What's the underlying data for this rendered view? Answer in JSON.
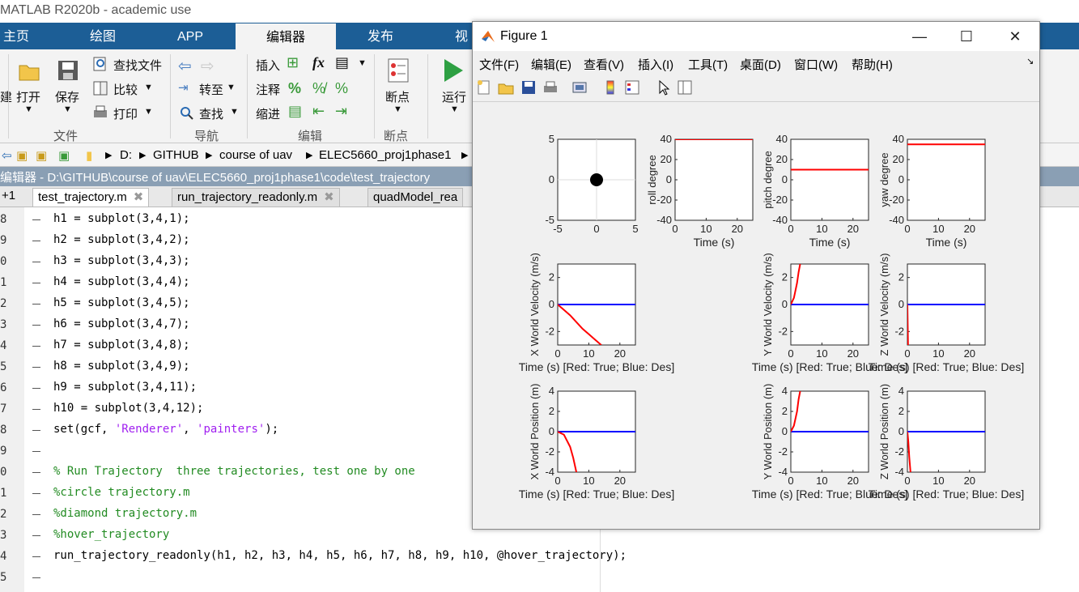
{
  "app": {
    "title": "MATLAB R2020b - academic use"
  },
  "ribbon_tabs": [
    "主页",
    "绘图",
    "APP",
    "编辑器",
    "发布",
    "视"
  ],
  "ribbon": {
    "open": "打开",
    "save": "保存",
    "find_files": "查找文件",
    "compare": "比较",
    "print": "打印",
    "goto": "转至",
    "find": "查找",
    "insert": "插入",
    "fx": "fx",
    "comment": "注释",
    "indent": "缩进",
    "breakpoints": "断点",
    "run": "运行",
    "group_file": "文件",
    "group_nav": "导航",
    "group_edit": "编辑",
    "group_bp": "断点",
    "left_cut": "建"
  },
  "address": {
    "drive": "D:",
    "parts": [
      "GITHUB",
      "course of uav",
      "ELEC5660_proj1phase1"
    ]
  },
  "editor": {
    "title": "编辑器 - D:\\GITHUB\\course of uav\\ELEC5660_proj1phase1\\code\\test_trajectory",
    "plus_tab": "+1",
    "tabs": [
      "test_trajectory.m",
      "run_trajectory_readonly.m",
      "quadModel_rea"
    ],
    "lines": [
      {
        "n": "8",
        "t": "h1 = subplot(3,4,1);"
      },
      {
        "n": "9",
        "t": "h2 = subplot(3,4,2);"
      },
      {
        "n": "0",
        "t": "h3 = subplot(3,4,3);"
      },
      {
        "n": "1",
        "t": "h4 = subplot(3,4,4);"
      },
      {
        "n": "2",
        "t": "h5 = subplot(3,4,5);"
      },
      {
        "n": "3",
        "t": "h6 = subplot(3,4,7);"
      },
      {
        "n": "4",
        "t": "h7 = subplot(3,4,8);"
      },
      {
        "n": "5",
        "t": "h8 = subplot(3,4,9);"
      },
      {
        "n": "6",
        "t": "h9 = subplot(3,4,11);"
      },
      {
        "n": "7",
        "t": "h10 = subplot(3,4,12);"
      },
      {
        "n": "8",
        "t": "set(gcf, "
      },
      {
        "n": "9",
        "t": ""
      },
      {
        "n": "0",
        "t": "% Run Trajectory  three trajectories, test one by one"
      },
      {
        "n": "1",
        "t": "%circle trajectory.m"
      },
      {
        "n": "2",
        "t": "%diamond trajectory.m"
      },
      {
        "n": "3",
        "t": "%hover_trajectory"
      },
      {
        "n": "4",
        "t": "run_trajectory_readonly(h1, h2, h3, h4, h5, h6, h7, h8, h9, h10, @hover_trajectory);"
      },
      {
        "n": "5",
        "t": ""
      }
    ],
    "set_str1": "'Renderer'",
    "set_mid": ", ",
    "set_str2": "'painters'",
    "set_end": ");"
  },
  "figure": {
    "title": "Figure 1",
    "menu": [
      "文件(F)",
      "编辑(E)",
      "查看(V)",
      "插入(I)",
      "工具(T)",
      "桌面(D)",
      "窗口(W)",
      "帮助(H)"
    ],
    "colors": {
      "true": "#ff0000",
      "des": "#0000ff"
    }
  },
  "chart_data": [
    {
      "type": "scatter",
      "x": [
        0
      ],
      "y": [
        0
      ],
      "xlim": [
        -5,
        5
      ],
      "ylim": [
        -5,
        5
      ],
      "xticks": [
        "-5",
        "0",
        "5"
      ],
      "yticks": [
        "5",
        "0",
        "-5"
      ],
      "xlabel": "",
      "ylabel": ""
    },
    {
      "type": "line",
      "ylabel": "roll degree",
      "xlabel": "Time (s)",
      "xlim": [
        0,
        25
      ],
      "ylim": [
        -40,
        40
      ],
      "xticks": [
        "0",
        "10",
        "20"
      ],
      "yticks": [
        "40",
        "20",
        "0",
        "-20",
        "-40"
      ],
      "series": [
        {
          "x": [
            0,
            25
          ],
          "y": [
            40,
            40
          ],
          "color": "red"
        }
      ]
    },
    {
      "type": "line",
      "ylabel": "pitch degree",
      "xlabel": "Time (s)",
      "xlim": [
        0,
        25
      ],
      "ylim": [
        -40,
        40
      ],
      "xticks": [
        "0",
        "10",
        "20"
      ],
      "yticks": [
        "40",
        "20",
        "0",
        "-20",
        "-40"
      ],
      "series": [
        {
          "x": [
            0,
            25
          ],
          "y": [
            10,
            10
          ],
          "color": "red"
        }
      ]
    },
    {
      "type": "line",
      "ylabel": "yaw degree",
      "xlabel": "Time (s)",
      "xlim": [
        0,
        25
      ],
      "ylim": [
        -40,
        40
      ],
      "xticks": [
        "0",
        "10",
        "20"
      ],
      "yticks": [
        "40",
        "20",
        "0",
        "-20",
        "-40"
      ],
      "series": [
        {
          "x": [
            0,
            25
          ],
          "y": [
            35,
            35
          ],
          "color": "red"
        }
      ]
    },
    {
      "type": "line",
      "ylabel": "X World Velocity (m/s)",
      "xlabel": "Time (s) [Red: True; Blue: Des]",
      "xlim": [
        0,
        25
      ],
      "ylim": [
        -3,
        3
      ],
      "xticks": [
        "0",
        "10",
        "20"
      ],
      "yticks": [
        "2",
        "0",
        "-2"
      ],
      "series": [
        {
          "x": [
            0,
            25
          ],
          "y": [
            0,
            0
          ],
          "color": "blue"
        },
        {
          "x": [
            0,
            2,
            4,
            6,
            8,
            10,
            12,
            14
          ],
          "y": [
            0,
            -0.4,
            -0.8,
            -1.3,
            -1.8,
            -2.2,
            -2.6,
            -3.0
          ],
          "color": "red"
        }
      ]
    },
    {
      "type": "line",
      "ylabel": "Y World Velocity (m/s)",
      "xlabel": "Time (s) [Red: True; Blue: Des]",
      "xlim": [
        0,
        25
      ],
      "ylim": [
        -3,
        3
      ],
      "xticks": [
        "0",
        "10",
        "20"
      ],
      "yticks": [
        "2",
        "0",
        "-2"
      ],
      "series": [
        {
          "x": [
            0,
            25
          ],
          "y": [
            0,
            0
          ],
          "color": "blue"
        },
        {
          "x": [
            0,
            1,
            2,
            2.5,
            3
          ],
          "y": [
            0,
            0.5,
            1.6,
            2.4,
            3.0
          ],
          "color": "red"
        }
      ]
    },
    {
      "type": "line",
      "ylabel": "Z World Velocity (m/s)",
      "xlabel": "Time (s) [Red: True; Blue: Des]",
      "xlim": [
        0,
        25
      ],
      "ylim": [
        -3,
        3
      ],
      "xticks": [
        "0",
        "10",
        "20"
      ],
      "yticks": [
        "2",
        "0",
        "-2"
      ],
      "series": [
        {
          "x": [
            0,
            25
          ],
          "y": [
            0,
            0
          ],
          "color": "blue"
        },
        {
          "x": [
            0,
            0.1,
            0.2
          ],
          "y": [
            0,
            -1.5,
            -3.0
          ],
          "color": "red"
        }
      ]
    },
    {
      "type": "line",
      "ylabel": "X World Position (m)",
      "xlabel": "Time (s) [Red: True; Blue: Des]",
      "xlim": [
        0,
        25
      ],
      "ylim": [
        -4,
        4
      ],
      "xticks": [
        "0",
        "10",
        "20"
      ],
      "yticks": [
        "4",
        "2",
        "0",
        "-2",
        "-4"
      ],
      "series": [
        {
          "x": [
            0,
            25
          ],
          "y": [
            0,
            0
          ],
          "color": "blue"
        },
        {
          "x": [
            0,
            2,
            4,
            5,
            6
          ],
          "y": [
            0,
            -0.3,
            -1.5,
            -2.6,
            -4.0
          ],
          "color": "red"
        }
      ]
    },
    {
      "type": "line",
      "ylabel": "Y World Position (m)",
      "xlabel": "Time (s) [Red: True; Blue: Des]",
      "xlim": [
        0,
        25
      ],
      "ylim": [
        -4,
        4
      ],
      "xticks": [
        "0",
        "10",
        "20"
      ],
      "yticks": [
        "4",
        "2",
        "0",
        "-2",
        "-4"
      ],
      "series": [
        {
          "x": [
            0,
            25
          ],
          "y": [
            0,
            0
          ],
          "color": "blue"
        },
        {
          "x": [
            0,
            1,
            2,
            2.5,
            3
          ],
          "y": [
            0,
            0.6,
            2.0,
            3.2,
            4.0
          ],
          "color": "red"
        }
      ]
    },
    {
      "type": "line",
      "ylabel": "Z World Position (m)",
      "xlabel": "Time (s) [Red: True; Blue: Des]",
      "xlim": [
        0,
        25
      ],
      "ylim": [
        -4,
        4
      ],
      "xticks": [
        "0",
        "10",
        "20"
      ],
      "yticks": [
        "4",
        "2",
        "0",
        "-2",
        "-4"
      ],
      "series": [
        {
          "x": [
            0,
            25
          ],
          "y": [
            0,
            0
          ],
          "color": "blue"
        },
        {
          "x": [
            0,
            0.3,
            0.6,
            1.0
          ],
          "y": [
            0,
            -1.0,
            -2.5,
            -4.0
          ],
          "color": "red"
        }
      ]
    }
  ]
}
